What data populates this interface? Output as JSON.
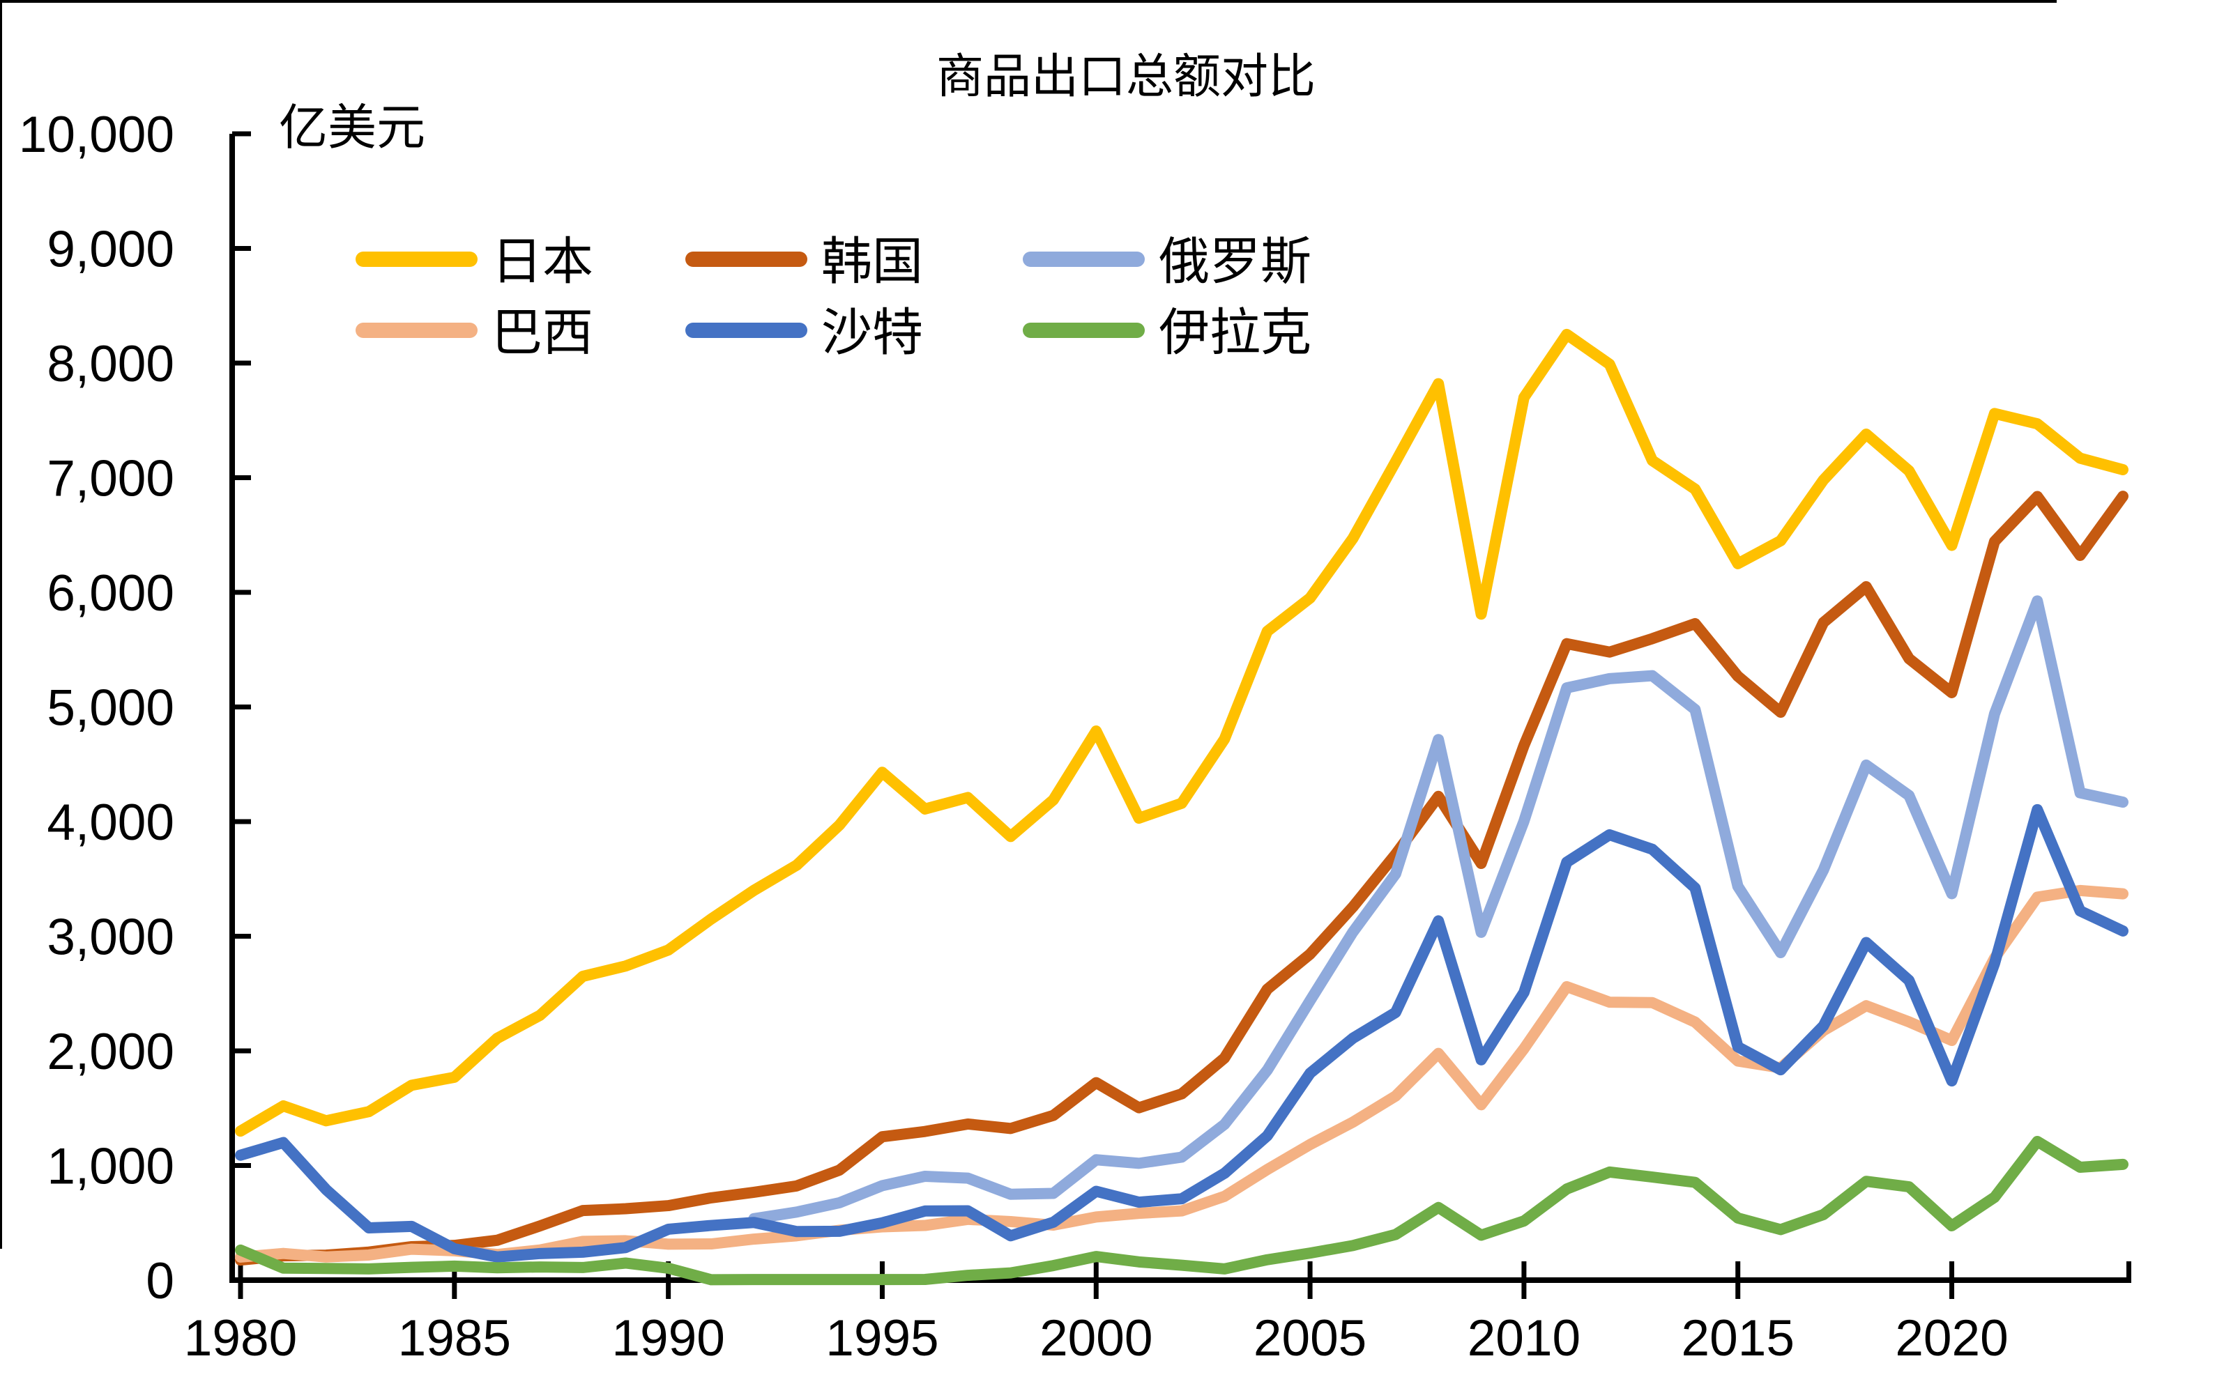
{
  "title": "商品出口总额对比",
  "unit_label": "亿美元",
  "chart_data": {
    "type": "line",
    "title": "商品出口总额对比",
    "ylabel": "亿美元",
    "xlabel": "",
    "ylim": [
      0,
      10000
    ],
    "y_tick_step": 1000,
    "y_tick_labels": [
      "0",
      "1,000",
      "2,000",
      "3,000",
      "4,000",
      "5,000",
      "6,000",
      "7,000",
      "8,000",
      "9,000",
      "10,000"
    ],
    "x": [
      1980,
      1981,
      1982,
      1983,
      1984,
      1985,
      1986,
      1987,
      1988,
      1989,
      1990,
      1991,
      1992,
      1993,
      1994,
      1995,
      1996,
      1997,
      1998,
      1999,
      2000,
      2001,
      2002,
      2003,
      2004,
      2005,
      2006,
      2007,
      2008,
      2009,
      2010,
      2011,
      2012,
      2013,
      2014,
      2015,
      2016,
      2017,
      2018,
      2019,
      2020,
      2021,
      2022,
      2023,
      2024
    ],
    "x_tick_labels": [
      "1980",
      "1985",
      "1990",
      "1995",
      "2000",
      "2005",
      "2010",
      "2015",
      "2020"
    ],
    "grid": false,
    "legend_position": "top-left-two-rows",
    "axis_color": "#000000",
    "series": [
      {
        "name": "日本",
        "color": "#FFC000",
        "values": [
          1300,
          1520,
          1390,
          1470,
          1700,
          1770,
          2110,
          2310,
          2650,
          2740,
          2880,
          3150,
          3400,
          3620,
          3970,
          4430,
          4110,
          4210,
          3870,
          4190,
          4790,
          4030,
          4160,
          4720,
          5660,
          5950,
          6470,
          7140,
          7820,
          5810,
          7700,
          8250,
          7990,
          7150,
          6900,
          6250,
          6450,
          6980,
          7380,
          7060,
          6410,
          7560,
          7470,
          7170,
          7070
        ]
      },
      {
        "name": "韩国",
        "color": "#C55A11",
        "values": [
          175,
          212,
          218,
          245,
          292,
          303,
          348,
          473,
          607,
          623,
          650,
          718,
          766,
          822,
          960,
          1251,
          1297,
          1362,
          1323,
          1437,
          1723,
          1504,
          1625,
          1938,
          2538,
          2844,
          3255,
          3715,
          4220,
          3635,
          4664,
          5552,
          5479,
          5596,
          5727,
          5268,
          4954,
          5737,
          6049,
          5422,
          5125,
          6444,
          6836,
          6322,
          6838
        ]
      },
      {
        "name": "俄罗斯",
        "color": "#8FAADC",
        "values": [
          null,
          null,
          null,
          null,
          null,
          null,
          null,
          null,
          null,
          null,
          null,
          null,
          536,
          594,
          675,
          824,
          906,
          890,
          749,
          757,
          1050,
          1019,
          1073,
          1359,
          1832,
          2438,
          3036,
          3544,
          4716,
          3034,
          4004,
          5167,
          5247,
          5273,
          4978,
          3435,
          2857,
          3578,
          4493,
          4228,
          3371,
          4940,
          5925,
          4251,
          4170
        ]
      },
      {
        "name": "巴西",
        "color": "#F4B183",
        "values": [
          201,
          233,
          202,
          219,
          270,
          256,
          224,
          263,
          338,
          344,
          314,
          316,
          358,
          387,
          435,
          465,
          477,
          530,
          511,
          480,
          551,
          583,
          604,
          731,
          965,
          1183,
          1378,
          1606,
          1978,
          1530,
          2019,
          2560,
          2425,
          2421,
          2251,
          1911,
          1852,
          2177,
          2394,
          2253,
          2091,
          2809,
          3341,
          3399,
          3370
        ]
      },
      {
        "name": "沙特",
        "color": "#4472C4",
        "values": [
          1090,
          1200,
          790,
          456,
          469,
          274,
          202,
          232,
          244,
          284,
          444,
          477,
          503,
          424,
          426,
          500,
          603,
          605,
          387,
          505,
          775,
          680,
          710,
          932,
          1259,
          1805,
          2110,
          2335,
          3134,
          1922,
          2510,
          3646,
          3885,
          3759,
          3421,
          2035,
          1835,
          2218,
          2945,
          2615,
          1738,
          2763,
          4104,
          3221,
          3046
        ]
      },
      {
        "name": "伊拉克",
        "color": "#70AD47",
        "values": [
          262,
          105,
          102,
          98,
          112,
          122,
          108,
          115,
          110,
          149,
          104,
          4,
          5,
          5,
          5,
          5,
          6,
          42,
          63,
          127,
          206,
          159,
          130,
          98,
          178,
          236,
          302,
          398,
          634,
          392,
          516,
          795,
          943,
          899,
          853,
          542,
          441,
          572,
          862,
          814,
          474,
          723,
          1210,
          985,
          1010
        ]
      }
    ]
  }
}
